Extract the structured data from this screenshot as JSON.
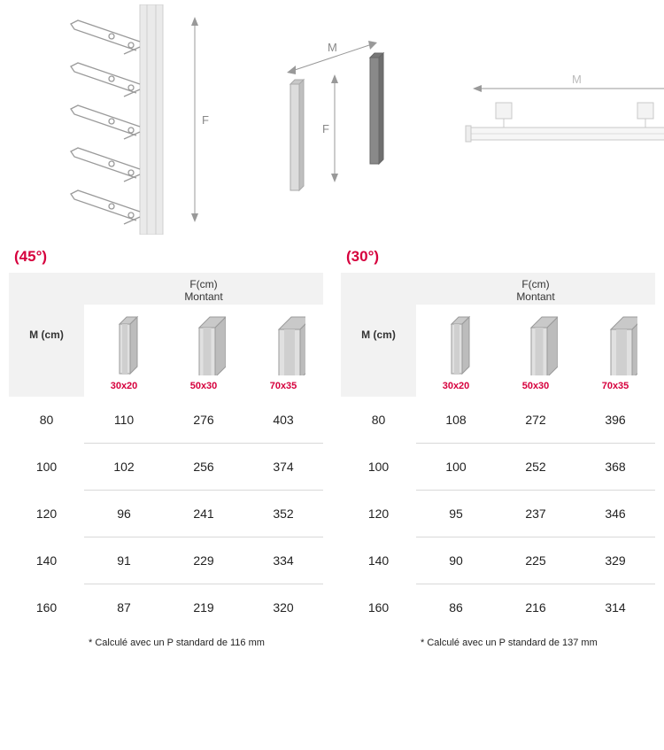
{
  "diagrams": {
    "label_M": "M",
    "label_F": "F"
  },
  "tables": [
    {
      "angle": "(45°)",
      "header_f": "F(cm)",
      "header_montant": "Montant",
      "header_m": "M (cm)",
      "profiles": [
        "30x20",
        "50x30",
        "70x35"
      ],
      "rows": [
        {
          "m": "80",
          "v": [
            "110",
            "276",
            "403"
          ]
        },
        {
          "m": "100",
          "v": [
            "102",
            "256",
            "374"
          ]
        },
        {
          "m": "120",
          "v": [
            "96",
            "241",
            "352"
          ]
        },
        {
          "m": "140",
          "v": [
            "91",
            "229",
            "334"
          ]
        },
        {
          "m": "160",
          "v": [
            "87",
            "219",
            "320"
          ]
        }
      ],
      "footnote": "* Calculé avec un P standard de 116 mm"
    },
    {
      "angle": "(30°)",
      "header_f": "F(cm)",
      "header_montant": "Montant",
      "header_m": "M (cm)",
      "profiles": [
        "30x20",
        "50x30",
        "70x35"
      ],
      "rows": [
        {
          "m": "80",
          "v": [
            "108",
            "272",
            "396"
          ]
        },
        {
          "m": "100",
          "v": [
            "100",
            "252",
            "368"
          ]
        },
        {
          "m": "120",
          "v": [
            "95",
            "237",
            "346"
          ]
        },
        {
          "m": "140",
          "v": [
            "90",
            "225",
            "329"
          ]
        },
        {
          "m": "160",
          "v": [
            "86",
            "216",
            "314"
          ]
        }
      ],
      "footnote": "* Calculé avec un P standard de 137 mm"
    }
  ],
  "colors": {
    "accent": "#d6003d",
    "header_bg": "#f2f2f2",
    "divider": "#d9d9d9",
    "diagram_line": "#b0b0b0",
    "diagram_shade": "#e8e8e8"
  },
  "profile_drawings": [
    {
      "w": 12,
      "d": 8
    },
    {
      "w": 18,
      "d": 12
    },
    {
      "w": 24,
      "d": 14
    }
  ]
}
